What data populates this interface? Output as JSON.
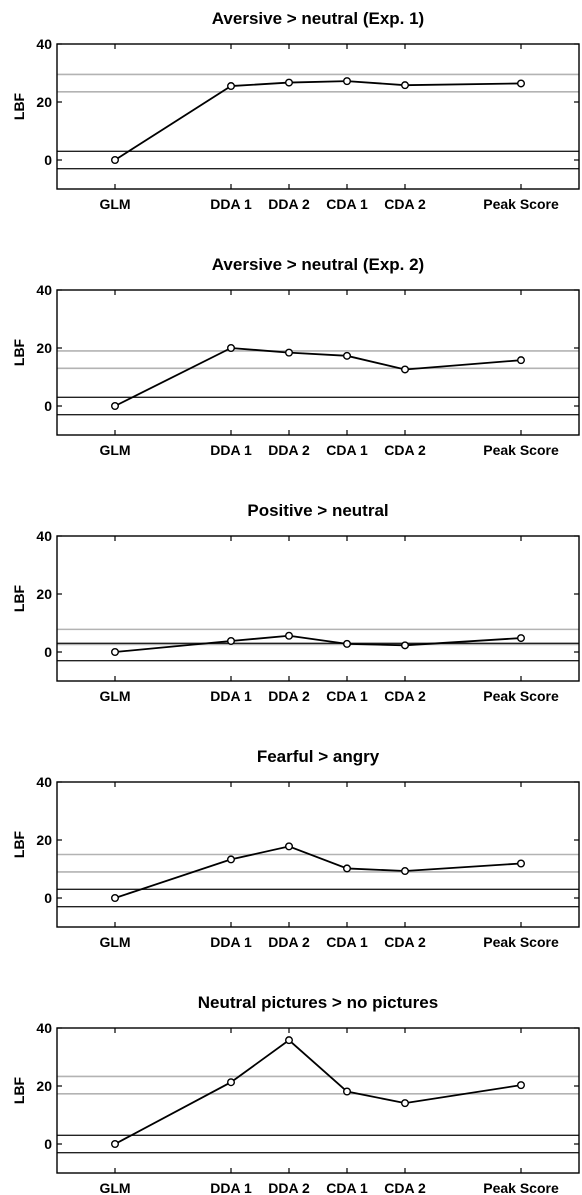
{
  "chart_data": [
    {
      "type": "line",
      "title": "Aversive > neutral (Exp. 1)",
      "ylabel": "LBF",
      "xlabel": "",
      "categories": [
        "GLM",
        "DDA 1",
        "DDA 2",
        "CDA 1",
        "CDA 2",
        "Peak Score"
      ],
      "x": [
        1,
        3,
        4,
        5,
        6,
        8
      ],
      "values": [
        0,
        25.5,
        26.7,
        27.2,
        25.8,
        26.4
      ],
      "ylim": [
        -10,
        40
      ],
      "yticks": [
        0,
        20,
        40
      ],
      "reference_lines": {
        "black": [
          3,
          -3
        ],
        "gray": [
          29.5,
          23.5
        ],
        "colors": {
          "black": "#222222",
          "gray": "#b3b3b3"
        }
      },
      "grid": false
    },
    {
      "type": "line",
      "title": "Aversive > neutral (Exp. 2)",
      "ylabel": "LBF",
      "xlabel": "",
      "categories": [
        "GLM",
        "DDA 1",
        "DDA 2",
        "CDA 1",
        "CDA 2",
        "Peak Score"
      ],
      "x": [
        1,
        3,
        4,
        5,
        6,
        8
      ],
      "values": [
        0,
        20,
        18.4,
        17.3,
        12.6,
        15.8
      ],
      "ylim": [
        -10,
        40
      ],
      "yticks": [
        0,
        20,
        40
      ],
      "reference_lines": {
        "black": [
          3,
          -3
        ],
        "gray": [
          19,
          13
        ],
        "colors": {
          "black": "#222222",
          "gray": "#b3b3b3"
        }
      },
      "grid": false
    },
    {
      "type": "line",
      "title": "Positive > neutral",
      "ylabel": "LBF",
      "xlabel": "",
      "categories": [
        "GLM",
        "DDA 1",
        "DDA 2",
        "CDA 1",
        "CDA 2",
        "Peak Score"
      ],
      "x": [
        1,
        3,
        4,
        5,
        6,
        8
      ],
      "values": [
        0,
        3.8,
        5.6,
        2.8,
        2.3,
        4.8
      ],
      "ylim": [
        -10,
        40
      ],
      "yticks": [
        0,
        20,
        40
      ],
      "reference_lines": {
        "black": [
          3,
          -3
        ],
        "gray": [
          7.8,
          2.6
        ],
        "colors": {
          "black": "#222222",
          "gray": "#b3b3b3"
        }
      },
      "grid": false
    },
    {
      "type": "line",
      "title": "Fearful > angry",
      "ylabel": "LBF",
      "xlabel": "",
      "categories": [
        "GLM",
        "DDA 1",
        "DDA 2",
        "CDA 1",
        "CDA 2",
        "Peak Score"
      ],
      "x": [
        1,
        3,
        4,
        5,
        6,
        8
      ],
      "values": [
        0,
        13.3,
        17.8,
        10.2,
        9.3,
        11.9
      ],
      "ylim": [
        -10,
        40
      ],
      "yticks": [
        0,
        20,
        40
      ],
      "reference_lines": {
        "black": [
          3,
          -3
        ],
        "gray": [
          15,
          9
        ],
        "colors": {
          "black": "#222222",
          "gray": "#b3b3b3"
        }
      },
      "grid": false
    },
    {
      "type": "line",
      "title": "Neutral pictures > no pictures",
      "ylabel": "LBF",
      "xlabel": "",
      "categories": [
        "GLM",
        "DDA 1",
        "DDA 2",
        "CDA 1",
        "CDA 2",
        "Peak Score"
      ],
      "x": [
        1,
        3,
        4,
        5,
        6,
        8
      ],
      "values": [
        0,
        21.3,
        35.8,
        18.1,
        14.1,
        20.3
      ],
      "ylim": [
        -10,
        40
      ],
      "yticks": [
        0,
        20,
        40
      ],
      "reference_lines": {
        "black": [
          3,
          -3
        ],
        "gray": [
          23.3,
          17.3
        ],
        "colors": {
          "black": "#222222",
          "gray": "#b3b3b3"
        }
      },
      "grid": false
    }
  ]
}
